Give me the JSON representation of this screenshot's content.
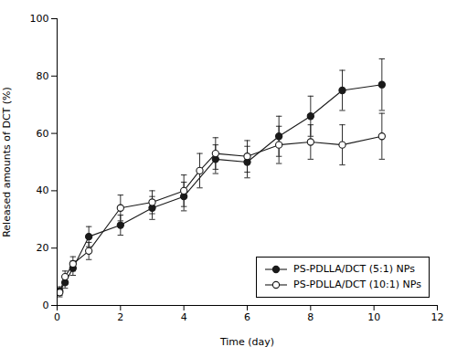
{
  "chart_data": {
    "type": "line",
    "xlabel": "Time (day)",
    "ylabel": "Released amounts of DCT (%)",
    "xlim": [
      0,
      12
    ],
    "ylim": [
      0,
      100
    ],
    "xticks": [
      0,
      2,
      4,
      6,
      8,
      10,
      12
    ],
    "yticks": [
      0,
      20,
      40,
      60,
      80,
      100
    ],
    "grid": false,
    "legend": "lower right",
    "series": [
      {
        "name": "PS-PDLLA/DCT (5:1) NPs",
        "color": "#1a1a1a",
        "marker": "filled_circle",
        "x": [
          0.08,
          0.25,
          0.5,
          1.0,
          2.0,
          3.0,
          4.0,
          5.0,
          6.0,
          7.0,
          8.0,
          9.0,
          10.25
        ],
        "values": [
          5.0,
          8.0,
          13.0,
          24.0,
          28.0,
          34.0,
          38.0,
          51.0,
          50.0,
          59.0,
          66.0,
          75.0,
          77.0
        ],
        "errors": [
          1.5,
          2.0,
          2.5,
          3.5,
          3.5,
          4.0,
          5.0,
          5.0,
          5.5,
          7.0,
          7.0,
          7.0,
          9.0
        ]
      },
      {
        "name": "PS-PDLLA/DCT (10:1) NPs",
        "color": "#1a1a1a",
        "marker": "open_circle",
        "x": [
          0.08,
          0.25,
          0.5,
          1.0,
          2.0,
          3.0,
          4.0,
          4.5,
          5.0,
          6.0,
          7.0,
          8.0,
          9.0,
          10.25
        ],
        "values": [
          4.5,
          10.0,
          14.5,
          19.0,
          34.0,
          36.0,
          40.0,
          47.0,
          53.0,
          52.0,
          56.0,
          57.0,
          56.0,
          59.0
        ],
        "errors": [
          1.5,
          2.0,
          2.5,
          3.0,
          4.5,
          4.0,
          5.5,
          6.0,
          5.5,
          5.5,
          6.5,
          6.0,
          7.0,
          8.0
        ]
      }
    ]
  }
}
